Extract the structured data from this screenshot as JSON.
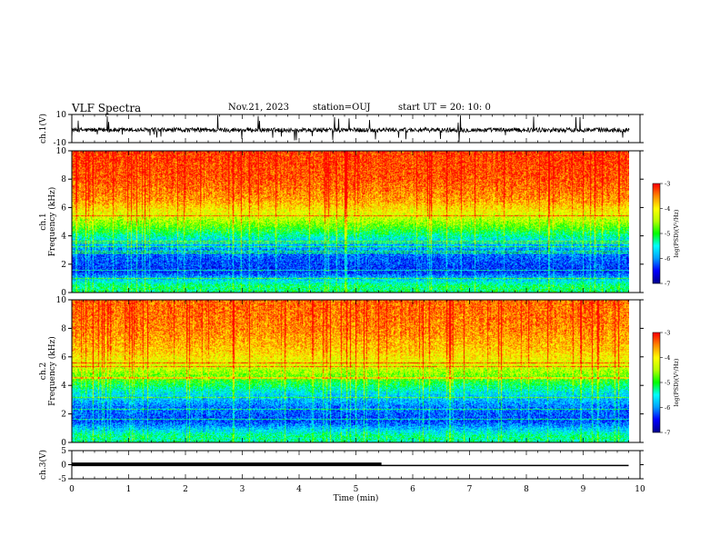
{
  "header": {
    "title": "VLF Spectra",
    "date": "Nov.21, 2023",
    "station": "station=OUJ",
    "start": "start  UT =   20: 10: 0"
  },
  "colors": {
    "spectrum": [
      "#000090",
      "#0000ff",
      "#00a0ff",
      "#00ffff",
      "#00ff00",
      "#b4ff00",
      "#ffff00",
      "#ff8c00",
      "#ff0000"
    ],
    "trace": "#000000"
  },
  "chart_data": [
    {
      "type": "line",
      "panel": "ch1-waveform",
      "ylabel": "ch.1(V)",
      "ylim": [
        -10,
        10
      ],
      "yticks": [
        10,
        -10
      ],
      "description_series": [
        {
          "values": "noise waveform centered near -1 V with spikes reaching about +10 / -10 V"
        }
      ]
    },
    {
      "type": "heatmap",
      "panel": "ch1-spectrogram",
      "ylabel_line1": "ch.1",
      "ylabel_line2": "Frequency  (kHz)",
      "xlim": [
        0,
        10
      ],
      "ylim": [
        0,
        10
      ],
      "yticks": [
        0,
        2,
        4,
        6,
        8,
        10
      ],
      "colorbar": {
        "label": "log(PSD)(V²/Hz)",
        "ticks": [
          -3,
          -4,
          -5,
          -6,
          -7
        ],
        "range": [
          -7,
          -3
        ]
      },
      "profile": [
        {
          "freq_kHz": 0.5,
          "log_psd": -5.2
        },
        {
          "freq_kHz": 1.5,
          "log_psd": -6.4
        },
        {
          "freq_kHz": 2.5,
          "log_psd": -6.2
        },
        {
          "freq_kHz": 3.5,
          "log_psd": -5.8
        },
        {
          "freq_kHz": 4.5,
          "log_psd": -4.9
        },
        {
          "freq_kHz": 5.5,
          "log_psd": -4.2
        },
        {
          "freq_kHz": 6.5,
          "log_psd": -3.6
        },
        {
          "freq_kHz": 8.0,
          "log_psd": -3.3
        },
        {
          "freq_kHz": 9.5,
          "log_psd": -3.2
        }
      ]
    },
    {
      "type": "heatmap",
      "panel": "ch2-spectrogram",
      "ylabel_line1": "ch.2",
      "ylabel_line2": "Frequency  (kHz)",
      "xlim": [
        0,
        10
      ],
      "ylim": [
        0,
        10
      ],
      "yticks": [
        0,
        2,
        4,
        6,
        8,
        10
      ],
      "colorbar": {
        "label": "log(PSD)(V²/Hz)",
        "ticks": [
          -3,
          -4,
          -5,
          -6,
          -7
        ],
        "range": [
          -7,
          -3
        ]
      },
      "profile": [
        {
          "freq_kHz": 0.5,
          "log_psd": -5.3
        },
        {
          "freq_kHz": 1.5,
          "log_psd": -6.3
        },
        {
          "freq_kHz": 2.5,
          "log_psd": -6.1
        },
        {
          "freq_kHz": 3.5,
          "log_psd": -5.6
        },
        {
          "freq_kHz": 4.5,
          "log_psd": -4.8
        },
        {
          "freq_kHz": 5.5,
          "log_psd": -4.2
        },
        {
          "freq_kHz": 6.5,
          "log_psd": -3.8
        },
        {
          "freq_kHz": 8.0,
          "log_psd": -3.5
        },
        {
          "freq_kHz": 9.5,
          "log_psd": -3.4
        }
      ]
    },
    {
      "type": "line",
      "panel": "ch3-signal",
      "ylabel": "ch.3(V)",
      "ylim": [
        -5,
        5
      ],
      "yticks": [
        5,
        0,
        -5
      ],
      "series": [
        {
          "x": [
            0,
            5.45
          ],
          "y": [
            0.3,
            0.3
          ]
        },
        {
          "x": [
            0,
            9.8
          ],
          "y": [
            -0.3,
            -0.3
          ]
        }
      ]
    }
  ],
  "time_axis": {
    "label": "Time  (min)",
    "ticks": [
      0,
      1,
      2,
      3,
      4,
      5,
      6,
      7,
      8,
      9,
      10
    ],
    "data_end_min": 9.85
  }
}
